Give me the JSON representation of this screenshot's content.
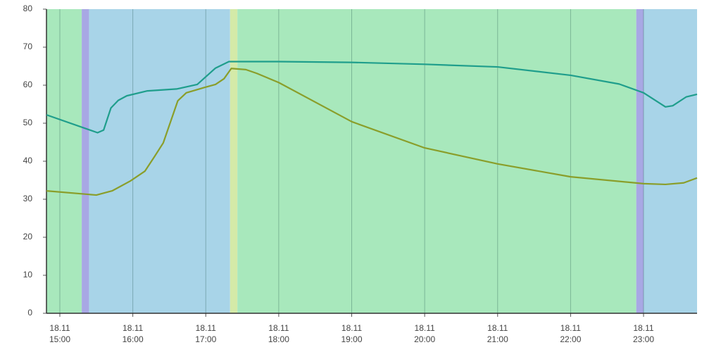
{
  "chart_data": {
    "type": "line",
    "xlim": [
      "18.11 14:49",
      "18.11 23:44"
    ],
    "ylim": [
      0,
      80
    ],
    "yticks": [
      0,
      10,
      20,
      30,
      40,
      50,
      60,
      70,
      80
    ],
    "xticks": [
      {
        "value": "18.11 15:00",
        "label": "18.11\n15:00"
      },
      {
        "value": "18.11 16:00",
        "label": "18.11\n16:00"
      },
      {
        "value": "18.11 17:00",
        "label": "18.11\n17:00"
      },
      {
        "value": "18.11 18:00",
        "label": "18.11\n18:00"
      },
      {
        "value": "18.11 19:00",
        "label": "18.11\n19:00"
      },
      {
        "value": "18.11 20:00",
        "label": "18.11\n20:00"
      },
      {
        "value": "18.11 21:00",
        "label": "18.11\n21:00"
      },
      {
        "value": "18.11 22:00",
        "label": "18.11\n22:00"
      },
      {
        "value": "18.11 23:00",
        "label": "18.11\n23:00"
      }
    ],
    "grid": true,
    "bands": [
      {
        "start": "18.11 14:49",
        "end": "18.11 15:18",
        "color": "#a8e8bc"
      },
      {
        "start": "18.11 15:18",
        "end": "18.11 15:24",
        "color": "#a8a8e4"
      },
      {
        "start": "18.11 15:24",
        "end": "18.11 17:20",
        "color": "#a8d4e8"
      },
      {
        "start": "18.11 17:20",
        "end": "18.11 17:26",
        "color": "#d4eaa8"
      },
      {
        "start": "18.11 17:26",
        "end": "18.11 22:54",
        "color": "#a8e8bc"
      },
      {
        "start": "18.11 22:54",
        "end": "18.11 23:00",
        "color": "#a8a8e4"
      },
      {
        "start": "18.11 23:00",
        "end": "18.11 23:44",
        "color": "#a8d4e8"
      }
    ],
    "series": [
      {
        "color": "#1f9e8c",
        "x": [
          "18.11 14:49",
          "18.11 15:31",
          "18.11 15:36",
          "18.11 15:42",
          "18.11 15:48",
          "18.11 15:55",
          "18.11 16:12",
          "18.11 16:36",
          "18.11 16:53",
          "18.11 17:08",
          "18.11 17:19",
          "18.11 18:00",
          "18.11 19:00",
          "18.11 20:00",
          "18.11 21:00",
          "18.11 22:00",
          "18.11 22:40",
          "18.11 23:00",
          "18.11 23:18",
          "18.11 23:24",
          "18.11 23:35",
          "18.11 23:44"
        ],
        "values": [
          52.2,
          47.5,
          48.2,
          54,
          56,
          57.2,
          58.5,
          59,
          60.2,
          64.5,
          66.2,
          66.2,
          66,
          65.5,
          64.8,
          62.6,
          60.3,
          58,
          54.3,
          54.6,
          56.9,
          57.6
        ]
      },
      {
        "color": "#8a9e2a",
        "x": [
          "18.11 14:49",
          "18.11 15:30",
          "18.11 15:43",
          "18.11 15:58",
          "18.11 16:10",
          "18.11 16:18",
          "18.11 16:25",
          "18.11 16:37",
          "18.11 16:44",
          "18.11 16:59",
          "18.11 17:08",
          "18.11 17:15",
          "18.11 17:21",
          "18.11 17:33",
          "18.11 17:42",
          "18.11 18:00",
          "18.11 19:00",
          "18.11 20:00",
          "18.11 21:00",
          "18.11 22:00",
          "18.11 23:00",
          "18.11 23:18",
          "18.11 23:33",
          "18.11 23:44"
        ],
        "values": [
          32.2,
          31.1,
          32.2,
          34.8,
          37.4,
          41.3,
          44.8,
          55.9,
          58,
          59.4,
          60.2,
          61.7,
          64.4,
          64.1,
          63.1,
          60.7,
          50.4,
          43.5,
          39.3,
          35.9,
          34.1,
          33.9,
          34.3,
          35.6
        ]
      }
    ]
  }
}
